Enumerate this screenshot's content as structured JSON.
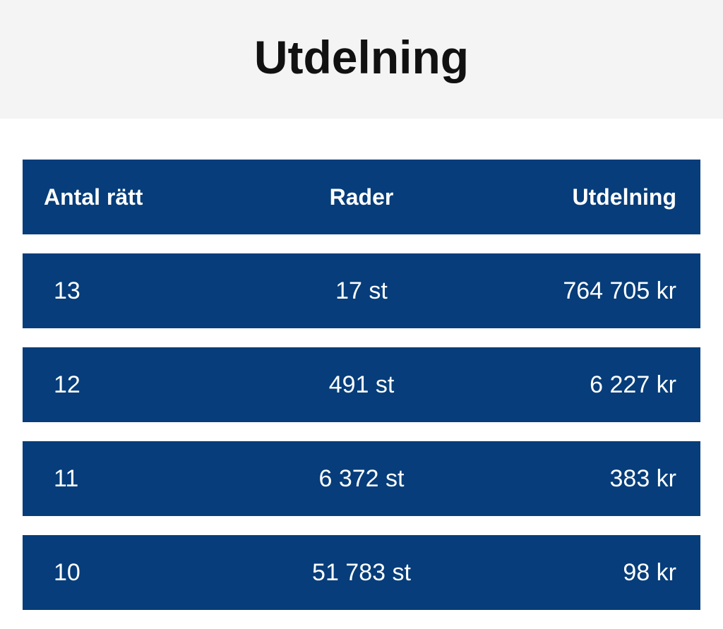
{
  "header": {
    "title": "Utdelning"
  },
  "table": {
    "columns": [
      "Antal rätt",
      "Rader",
      "Utdelning"
    ],
    "rows": [
      [
        "13",
        "17 st",
        "764 705 kr"
      ],
      [
        "12",
        "491 st",
        "6 227 kr"
      ],
      [
        "11",
        "6 372 st",
        "383 kr"
      ],
      [
        "10",
        "51 783 st",
        "98 kr"
      ]
    ]
  },
  "colors": {
    "header_background": "#f4f4f4",
    "table_row_background": "#063d7a",
    "table_text": "#ffffff",
    "title_text": "#111111"
  }
}
